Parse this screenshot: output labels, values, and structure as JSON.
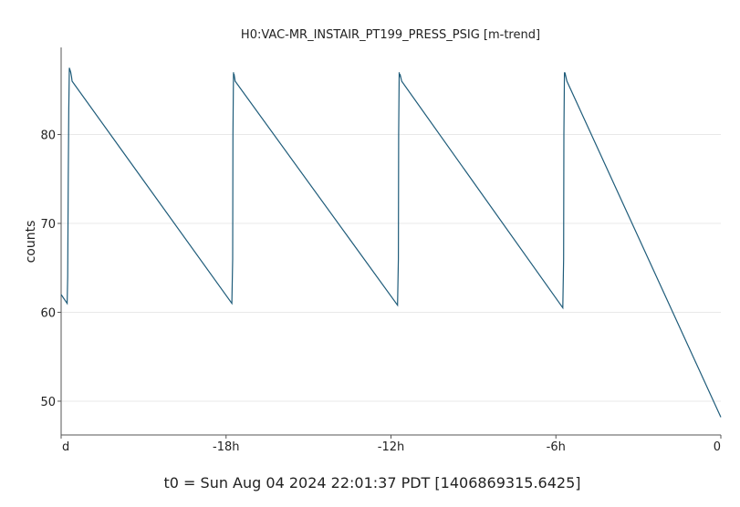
{
  "chart_data": {
    "type": "line",
    "title": "H0:VAC-MR_INSTAIR_PT199_PRESS_PSIG [m-trend]",
    "xlabel": "",
    "ylabel": "counts",
    "footer": "t0 = Sun Aug 04 2024 22:01:37 PDT [1406869315.6425]",
    "xlim": [
      -24,
      0
    ],
    "ylim": [
      46.2,
      89.8
    ],
    "grid": true,
    "x_ticks": [
      {
        "value": -24,
        "label": "d"
      },
      {
        "value": -18,
        "label": "-18h"
      },
      {
        "value": -12,
        "label": "-12h"
      },
      {
        "value": -6,
        "label": "-6h"
      },
      {
        "value": 0,
        "label": "0"
      }
    ],
    "y_ticks": [
      {
        "value": 50,
        "label": "50"
      },
      {
        "value": 60,
        "label": "60"
      },
      {
        "value": 70,
        "label": "70"
      },
      {
        "value": 80,
        "label": "80"
      }
    ],
    "series": [
      {
        "color": "#1f5c7a",
        "x": [
          -24.0,
          -23.78,
          -23.76,
          -23.74,
          -23.72,
          -23.7,
          -23.65,
          -23.62,
          -23.6,
          -17.79,
          -17.76,
          -17.75,
          -17.73,
          -17.72,
          -17.71,
          -17.67,
          -11.76,
          -11.73,
          -11.72,
          -11.7,
          -11.69,
          -11.67,
          -11.61,
          -5.75,
          -5.72,
          -5.71,
          -5.69,
          -5.68,
          -5.66,
          -5.6,
          0.0
        ],
        "y": [
          62.0,
          61.0,
          64.0,
          75.0,
          83.0,
          87.5,
          87.0,
          86.5,
          86.0,
          61.0,
          66.0,
          80.0,
          87.0,
          86.5,
          86.8,
          86.0,
          60.8,
          66.0,
          80.0,
          87.0,
          86.5,
          86.8,
          86.0,
          60.5,
          66.0,
          80.0,
          87.0,
          86.6,
          86.8,
          86.0,
          48.2
        ]
      }
    ]
  }
}
